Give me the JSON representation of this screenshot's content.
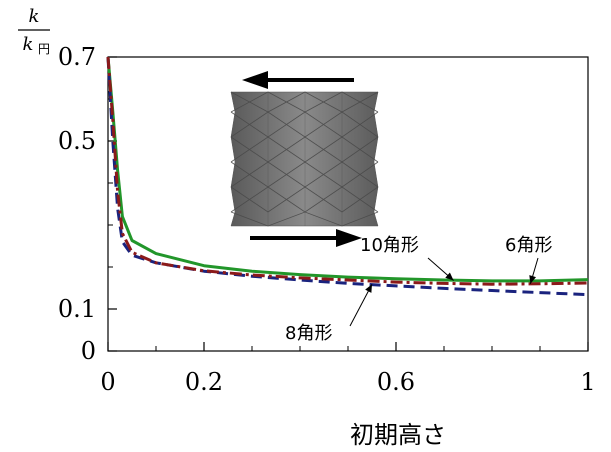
{
  "chart_data": {
    "type": "line",
    "ylabel": {
      "numerator": "k",
      "denominator": "k",
      "denominator_sub": "円"
    },
    "xlabel": "初期高さ",
    "xlim": [
      0,
      1
    ],
    "ylim": [
      0,
      0.7
    ],
    "xticks": [
      {
        "value": 0,
        "label": "0"
      },
      {
        "value": 0.2,
        "label": "0.2"
      },
      {
        "value": 0.6,
        "label": "0.6"
      },
      {
        "value": 1,
        "label": "1"
      }
    ],
    "yticks": [
      {
        "value": 0,
        "label": "0"
      },
      {
        "value": 0.1,
        "label": "0.1"
      },
      {
        "value": 0.5,
        "label": "0.5"
      },
      {
        "value": 0.7,
        "label": "0.7"
      }
    ],
    "minor_xticks": [
      0.1,
      0.3,
      0.4,
      0.5,
      0.7,
      0.8,
      0.9
    ],
    "minor_yticks": [
      0.2,
      0.3,
      0.4,
      0.6
    ],
    "grid": false,
    "series": [
      {
        "name": "10角形",
        "color": "#22962a",
        "style": "solid",
        "x": [
          0,
          0.01,
          0.02,
          0.03,
          0.05,
          0.1,
          0.2,
          0.3,
          0.4,
          0.5,
          0.6,
          0.7,
          0.8,
          0.9,
          1.0
        ],
        "y": [
          0.7,
          0.57,
          0.43,
          0.32,
          0.263,
          0.232,
          0.203,
          0.19,
          0.182,
          0.176,
          0.172,
          0.169,
          0.167,
          0.167,
          0.17
        ]
      },
      {
        "name": "8角形",
        "color": "#1a237e",
        "style": "dashed",
        "x": [
          0,
          0.01,
          0.02,
          0.03,
          0.05,
          0.1,
          0.2,
          0.3,
          0.4,
          0.5,
          0.6,
          0.7,
          0.8,
          0.9,
          1.0
        ],
        "y": [
          0.7,
          0.5,
          0.34,
          0.26,
          0.228,
          0.21,
          0.19,
          0.178,
          0.169,
          0.161,
          0.155,
          0.149,
          0.144,
          0.139,
          0.134
        ]
      },
      {
        "name": "6角形",
        "color": "#8b1a1a",
        "style": "dashdot",
        "x": [
          0,
          0.01,
          0.02,
          0.03,
          0.05,
          0.1,
          0.2,
          0.3,
          0.4,
          0.5,
          0.6,
          0.7,
          0.8,
          0.9,
          1.0
        ],
        "y": [
          0.7,
          0.55,
          0.38,
          0.28,
          0.235,
          0.21,
          0.191,
          0.181,
          0.174,
          0.169,
          0.164,
          0.161,
          0.159,
          0.16,
          0.162
        ]
      }
    ],
    "annotations": [
      {
        "text": "10角形",
        "series": "10角形",
        "point": [
          0.72,
          0.168
        ]
      },
      {
        "text": "6角形",
        "series": "6角形",
        "point": [
          0.88,
          0.16
        ]
      },
      {
        "text": "8角形",
        "series": "8角形",
        "point": [
          0.55,
          0.159
        ]
      }
    ]
  },
  "inset": {
    "body_color": "#707070",
    "arrow_color": "#000000"
  }
}
